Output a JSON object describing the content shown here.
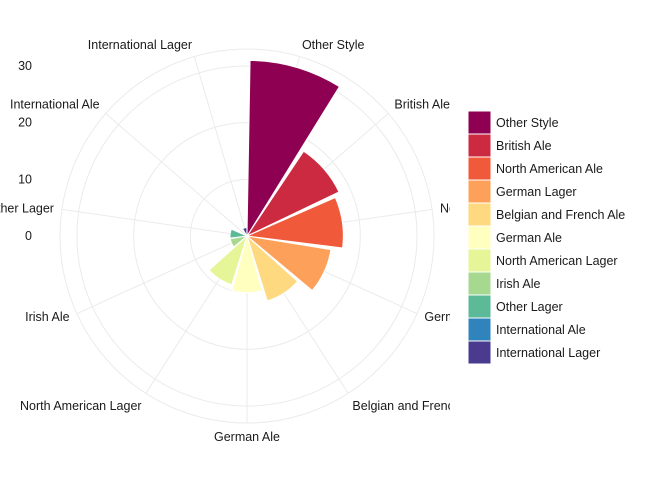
{
  "chart_data": {
    "type": "bar",
    "coord": "polar",
    "title": "",
    "xlabel": "",
    "ylabel": "",
    "categories": [
      "Other Style",
      "British Ale",
      "North American Ale",
      "German Lager",
      "Belgian and French Ale",
      "German Ale",
      "North American Lager",
      "Irish Ale",
      "Other Lager",
      "International Ale",
      "International Lager"
    ],
    "values": [
      31,
      18,
      17,
      15,
      12,
      10,
      9,
      3,
      3,
      0.4,
      1.5
    ],
    "colors": [
      "#8E0152",
      "#CC2A40",
      "#F05A3A",
      "#FDA05A",
      "#FED97F",
      "#FFFFBF",
      "#E6F598",
      "#A6D98F",
      "#5DBA99",
      "#3084BB",
      "#4A3B8F"
    ],
    "y_ticks": [
      "0",
      "10",
      "20",
      "30"
    ],
    "ylim": [
      0,
      33
    ],
    "legend": {
      "position": "right",
      "entries": [
        "Other Style",
        "British Ale",
        "North American Ale",
        "German Lager",
        "Belgian and French Ale",
        "German Ale",
        "North American Lager",
        "Irish Ale",
        "Other Lager",
        "International Ale",
        "International Lager"
      ]
    },
    "grid": true
  }
}
